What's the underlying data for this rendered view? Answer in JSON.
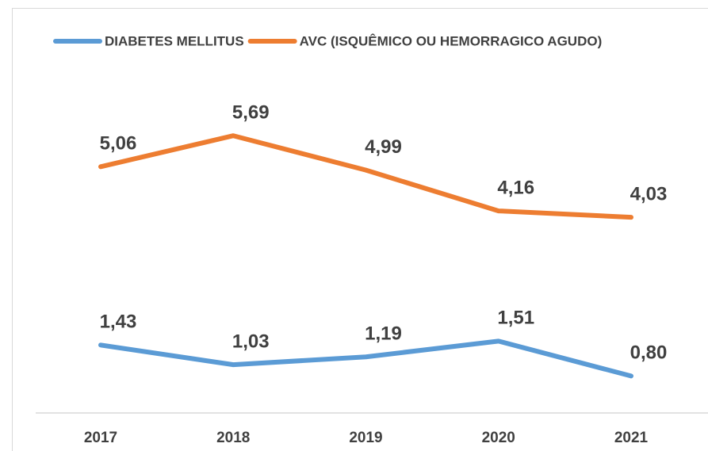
{
  "chart_data": {
    "type": "line",
    "categories": [
      "2017",
      "2018",
      "2019",
      "2020",
      "2021"
    ],
    "series": [
      {
        "name": "DIABETES MELLITUS",
        "color": "#5b9bd5",
        "values": [
          1.43,
          1.03,
          1.19,
          1.51,
          0.8
        ],
        "value_labels": [
          "1,43",
          "1,03",
          "1,19",
          "1,51",
          "0,80"
        ]
      },
      {
        "name": "AVC (ISQUÊMICO OU HEMORRAGICO AGUDO)",
        "color": "#ed7d31",
        "values": [
          5.06,
          5.69,
          4.99,
          4.16,
          4.03
        ],
        "value_labels": [
          "5,06",
          "5,69",
          "4,99",
          "4,16",
          "4,03"
        ]
      }
    ],
    "legend": "top"
  }
}
